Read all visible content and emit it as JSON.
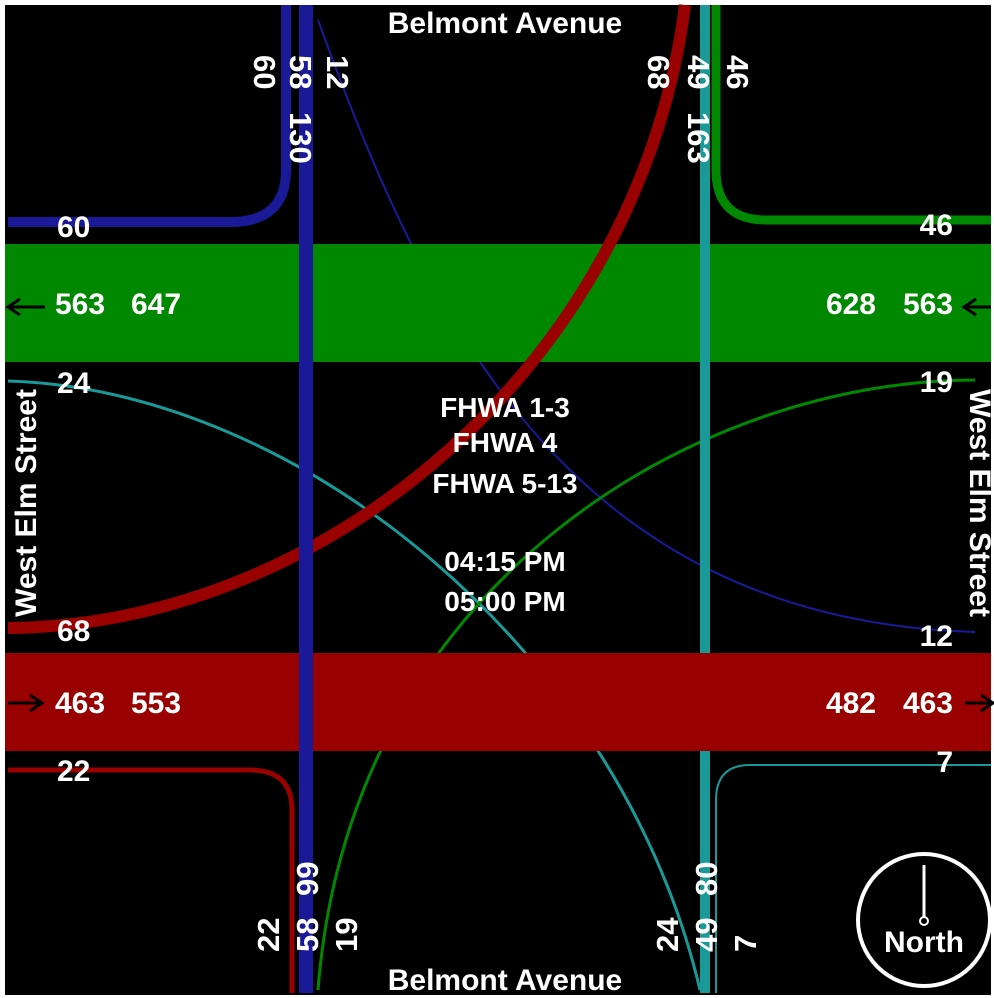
{
  "streets": {
    "north": "Belmont Avenue",
    "south": "Belmont Avenue",
    "west": "West Elm Street",
    "east": "West Elm Street"
  },
  "center": {
    "line1": "FHWA 1-3",
    "line2": "FHWA 4",
    "line3": "FHWA 5-13",
    "time_start": "04:15 PM",
    "time_end": "05:00 PM"
  },
  "north_approach": {
    "left": "60",
    "through": "58",
    "right": "12",
    "total": "130"
  },
  "northeast_approach": {
    "left": "68",
    "through": "49",
    "right": "46",
    "total": "163"
  },
  "south_approach": {
    "left": "22",
    "through": "58",
    "right": "19",
    "total": "99"
  },
  "southeast_approach": {
    "left": "24",
    "through": "49",
    "right": "7",
    "total": "80"
  },
  "west_side": {
    "top_turn": "60",
    "green_out": "563",
    "green_in": "647",
    "turn_24": "24",
    "turn_68": "68",
    "red_in": "463",
    "red_out": "553",
    "turn_22": "22"
  },
  "east_side": {
    "top_turn": "46",
    "green_in": "628",
    "green_out": "563",
    "turn_19": "19",
    "turn_12": "12",
    "red_in": "482",
    "red_out": "463",
    "turn_7": "7"
  },
  "compass": {
    "label": "North"
  },
  "colors": {
    "background": "#000000",
    "green": "#008800",
    "red": "#990000",
    "blue": "#1a1a99",
    "teal": "#1a9999",
    "text": "#ffffff"
  }
}
